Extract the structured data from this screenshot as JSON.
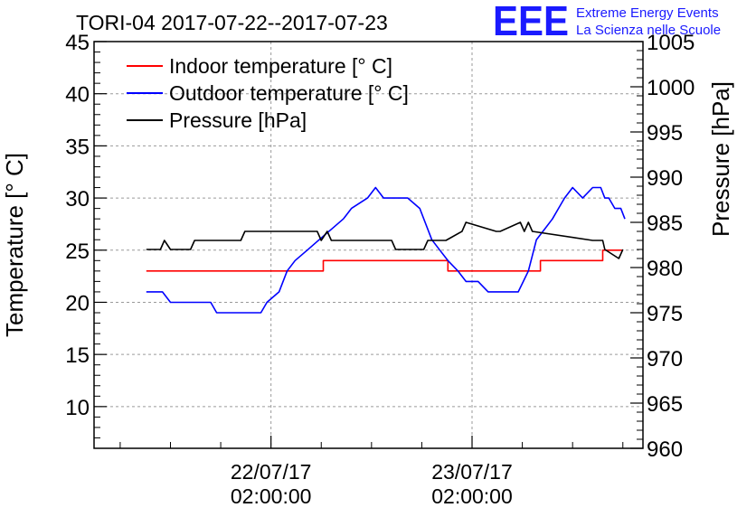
{
  "chart_data": {
    "type": "line",
    "title": "TORI-04 2017-07-22--2017-07-23",
    "logo": {
      "mark": "EEE",
      "line1": "Extreme Energy Events",
      "line2": "La Scienza nelle Scuole",
      "color": "#1a1aff"
    },
    "ylabel": "Temperature [° C]",
    "y2label": "Pressure [hPa]",
    "ylim": [
      6,
      45
    ],
    "y2lim": [
      960,
      1005
    ],
    "yticks": [
      "10",
      "15",
      "20",
      "25",
      "30",
      "35",
      "40",
      "45"
    ],
    "y2ticks": [
      "960",
      "965",
      "970",
      "975",
      "980",
      "985",
      "990",
      "995",
      "1000",
      "1005"
    ],
    "xlim": [
      -0.88,
      1.85
    ],
    "xtick_values": [
      0,
      1
    ],
    "xtick_labels": [
      [
        "22/07/17",
        "02:00:00"
      ],
      [
        "23/07/17",
        "02:00:00"
      ]
    ],
    "grid": true,
    "legend_position": "top-left",
    "series": [
      {
        "name": "Indoor temperature [° C]",
        "axis": "left",
        "color": "#ff0000",
        "x": [
          -0.62,
          0.26,
          0.26,
          0.88,
          0.88,
          1.34,
          1.34,
          1.52,
          1.52,
          1.65,
          1.65,
          1.75
        ],
        "y": [
          23,
          23,
          24,
          24,
          23,
          23,
          24,
          24,
          24,
          24,
          25,
          25
        ]
      },
      {
        "name": "Outdoor temperature [° C]",
        "axis": "left",
        "color": "#0000ff",
        "x": [
          -0.62,
          -0.54,
          -0.5,
          -0.3,
          -0.27,
          -0.05,
          -0.02,
          0.04,
          0.08,
          0.12,
          0.18,
          0.24,
          0.3,
          0.36,
          0.4,
          0.48,
          0.52,
          0.56,
          0.62,
          0.64,
          0.68,
          0.74,
          0.8,
          0.84,
          0.88,
          0.93,
          0.97,
          1.03,
          1.08,
          1.18,
          1.23,
          1.28,
          1.32,
          1.36,
          1.4,
          1.43,
          1.46,
          1.5,
          1.55,
          1.6,
          1.64,
          1.66,
          1.68,
          1.71,
          1.74,
          1.76
        ],
        "y": [
          21,
          21,
          20,
          20,
          19,
          19,
          20,
          21,
          23,
          24,
          25,
          26,
          27,
          28,
          29,
          30,
          31,
          30,
          30,
          30,
          30,
          29,
          26,
          25,
          24,
          23,
          22,
          22,
          21,
          21,
          21,
          23,
          26,
          27,
          28,
          29,
          30,
          31,
          30,
          31,
          31,
          30,
          30,
          29,
          29,
          28
        ]
      },
      {
        "name": "Pressure [hPa]",
        "axis": "right",
        "color": "#000000",
        "x": [
          -0.62,
          -0.55,
          -0.53,
          -0.5,
          -0.48,
          -0.4,
          -0.38,
          -0.15,
          -0.13,
          0.08,
          0.1,
          0.23,
          0.25,
          0.28,
          0.3,
          0.4,
          0.42,
          0.6,
          0.62,
          0.67,
          0.68,
          0.76,
          0.78,
          0.85,
          0.87,
          0.95,
          0.97,
          1.12,
          1.14,
          1.24,
          1.26,
          1.28,
          1.3,
          1.6,
          1.62,
          1.65,
          1.66,
          1.73,
          1.75
        ],
        "y": [
          982,
          982,
          983,
          982,
          982,
          982,
          983,
          983,
          984,
          984,
          984,
          984,
          983,
          984,
          983,
          983,
          983,
          983,
          982,
          982,
          982,
          982,
          983,
          983,
          983,
          984,
          985,
          984,
          984,
          985,
          984,
          985,
          984,
          983,
          983,
          983,
          982,
          981,
          982
        ]
      }
    ]
  }
}
